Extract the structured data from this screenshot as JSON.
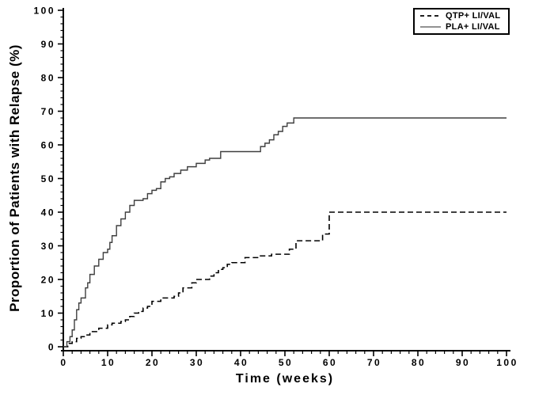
{
  "figure": {
    "background": "#ffffff",
    "axis_color": "#000000"
  },
  "legend": {
    "position": "top-right",
    "items": [
      {
        "label": "QTP+ LI/VAL",
        "line_style": "dashed",
        "color": "#000000"
      },
      {
        "label": "PLA+ LI/VAL",
        "line_style": "solid",
        "color": "#6e6e6e"
      }
    ]
  },
  "chart_data": {
    "type": "line",
    "subtype": "kaplan-meier-step",
    "title": "",
    "xlabel": "Time (weeks)",
    "ylabel": "Proportion of Patients with Relapse (%)",
    "xlim": [
      0,
      100
    ],
    "ylim": [
      0,
      100
    ],
    "x_ticks_major": [
      0,
      10,
      20,
      30,
      40,
      50,
      60,
      70,
      80,
      90,
      100
    ],
    "y_ticks_major": [
      0,
      10,
      20,
      30,
      40,
      50,
      60,
      70,
      80,
      90,
      100
    ],
    "x_minor_interval": 2,
    "y_minor_interval": 2,
    "grid": false,
    "legend_position": "top-right",
    "series": [
      {
        "name": "QTP+ LI/VAL",
        "style": "dashed",
        "color": "#000000",
        "final_value": 40,
        "points": [
          [
            0,
            0
          ],
          [
            1,
            1
          ],
          [
            2,
            1.5
          ],
          [
            3,
            2.5
          ],
          [
            4,
            3
          ],
          [
            5,
            3.5
          ],
          [
            6,
            4.5
          ],
          [
            8,
            5.5
          ],
          [
            10,
            6.5
          ],
          [
            11,
            7
          ],
          [
            13,
            7.5
          ],
          [
            14,
            8
          ],
          [
            15,
            9
          ],
          [
            16,
            10
          ],
          [
            17,
            10.5
          ],
          [
            18,
            11.5
          ],
          [
            19,
            12
          ],
          [
            20,
            13.5
          ],
          [
            22,
            14.5
          ],
          [
            25,
            15
          ],
          [
            26,
            16
          ],
          [
            27,
            17.5
          ],
          [
            29,
            19
          ],
          [
            30,
            20
          ],
          [
            33,
            21
          ],
          [
            34,
            22
          ],
          [
            35,
            23
          ],
          [
            36,
            23.5
          ],
          [
            37,
            24.5
          ],
          [
            38,
            25
          ],
          [
            41,
            26.5
          ],
          [
            44,
            27
          ],
          [
            47,
            27.5
          ],
          [
            51,
            29
          ],
          [
            52.5,
            31.5
          ],
          [
            58.5,
            33.5
          ],
          [
            60,
            40
          ],
          [
            100,
            40
          ]
        ]
      },
      {
        "name": "PLA+ LI/VAL",
        "style": "solid",
        "color": "#3f3f3f",
        "final_value": 68,
        "points": [
          [
            0,
            0
          ],
          [
            0.8,
            1.5
          ],
          [
            1.5,
            3
          ],
          [
            2,
            5
          ],
          [
            2.5,
            8
          ],
          [
            3,
            11
          ],
          [
            3.5,
            13
          ],
          [
            4,
            14.5
          ],
          [
            5,
            17.5
          ],
          [
            5.5,
            19
          ],
          [
            6,
            21.5
          ],
          [
            7,
            24
          ],
          [
            8,
            26
          ],
          [
            9,
            28
          ],
          [
            10,
            29
          ],
          [
            10.5,
            31
          ],
          [
            11,
            33
          ],
          [
            12,
            36
          ],
          [
            13,
            38
          ],
          [
            14,
            40
          ],
          [
            15,
            42
          ],
          [
            16,
            43.5
          ],
          [
            18,
            44
          ],
          [
            19,
            45.5
          ],
          [
            20,
            46.5
          ],
          [
            21,
            47
          ],
          [
            22,
            49
          ],
          [
            23,
            50
          ],
          [
            24,
            50.5
          ],
          [
            25,
            51.5
          ],
          [
            26.5,
            52.5
          ],
          [
            28,
            53.5
          ],
          [
            30,
            54.5
          ],
          [
            32,
            55.5
          ],
          [
            33,
            56
          ],
          [
            35.5,
            58
          ],
          [
            44,
            58
          ],
          [
            44.5,
            59.5
          ],
          [
            45.5,
            60.5
          ],
          [
            46.5,
            61.5
          ],
          [
            47.5,
            63
          ],
          [
            48.5,
            64
          ],
          [
            49.5,
            65.5
          ],
          [
            50.5,
            66.5
          ],
          [
            52,
            68
          ],
          [
            100,
            68
          ]
        ]
      }
    ]
  }
}
